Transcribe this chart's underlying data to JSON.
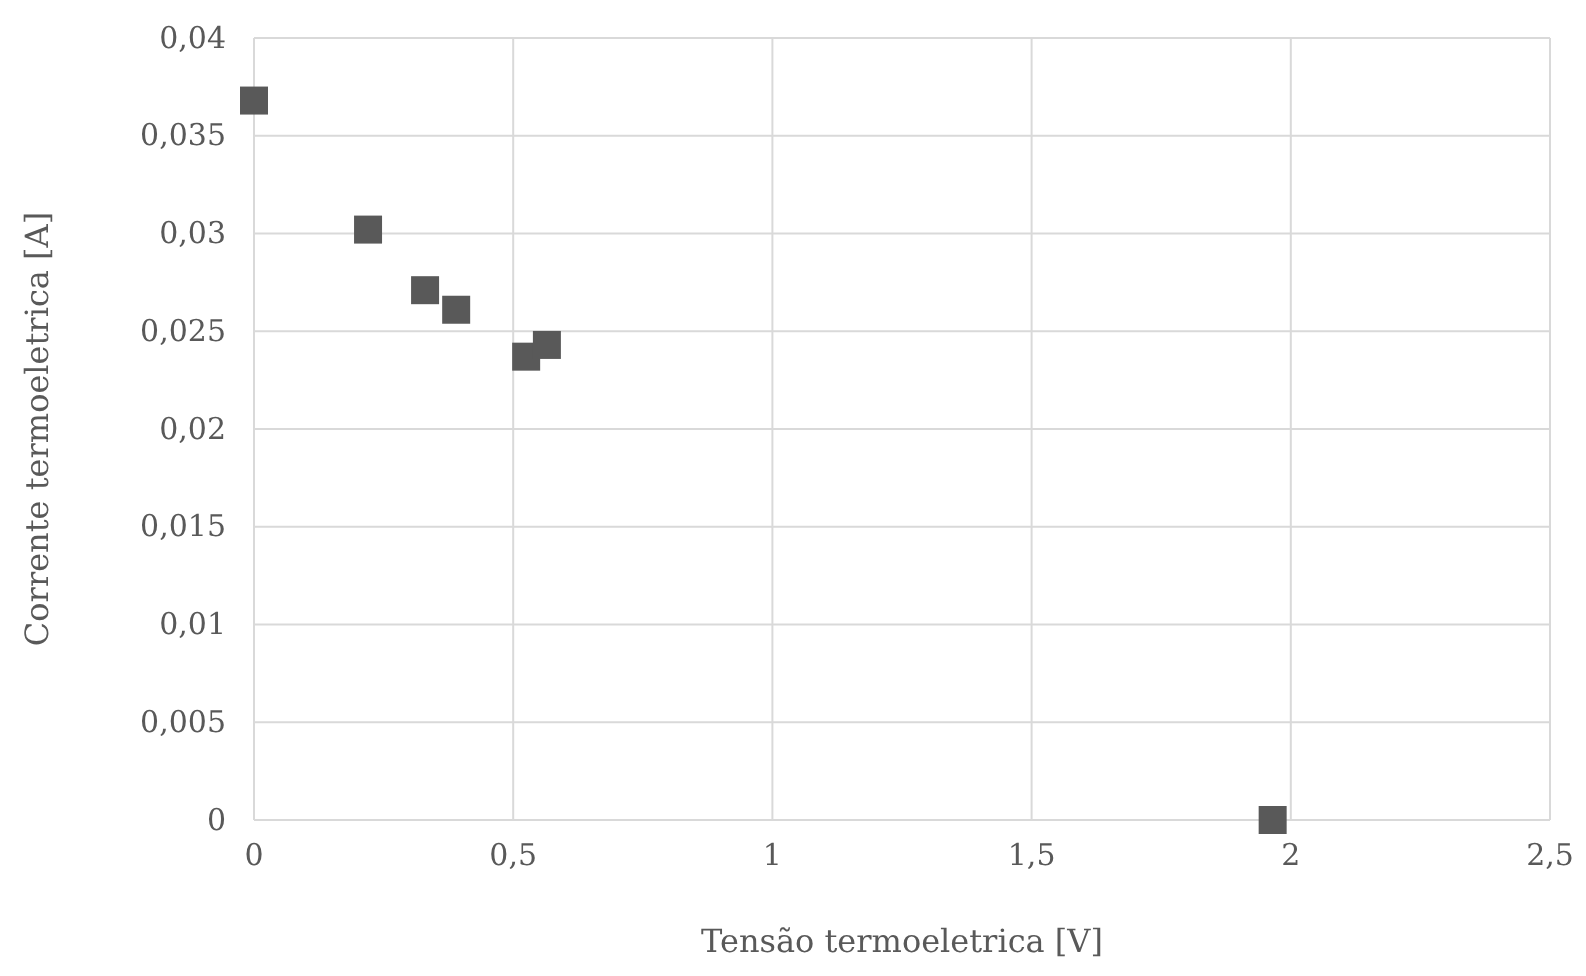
{
  "chart_data": {
    "type": "scatter",
    "xlabel": "Tensão termoeletrica [V]",
    "ylabel": "Corrente termoeletrica [A]",
    "x": [
      0,
      0.22,
      0.33,
      0.39,
      0.525,
      0.565,
      1.965
    ],
    "series": [
      {
        "color": "#595959",
        "values": [
          0.0368,
          0.0302,
          0.0271,
          0.0261,
          0.0237,
          0.0243,
          0
        ]
      }
    ],
    "xlim": [
      0,
      2.5
    ],
    "xticks": [
      0,
      {
        "value": 0.5,
        "label": "0,5"
      },
      1,
      {
        "value": 1.5,
        "label": "1,5"
      },
      2,
      {
        "value": 2.5,
        "label": "2,5"
      }
    ],
    "ylim": [
      0,
      0.04
    ],
    "yticks": [
      0,
      {
        "value": 0.005,
        "label": "0,005"
      },
      {
        "value": 0.01,
        "label": "0,01"
      },
      {
        "value": 0.015,
        "label": "0,015"
      },
      {
        "value": 0.02,
        "label": "0,02"
      },
      {
        "value": 0.025,
        "label": "0,025"
      },
      {
        "value": 0.03,
        "label": "0,03"
      },
      {
        "value": 0.035,
        "label": "0,035"
      },
      {
        "value": 0.04,
        "label": "0,04"
      }
    ],
    "grid": true,
    "marker": "square"
  }
}
